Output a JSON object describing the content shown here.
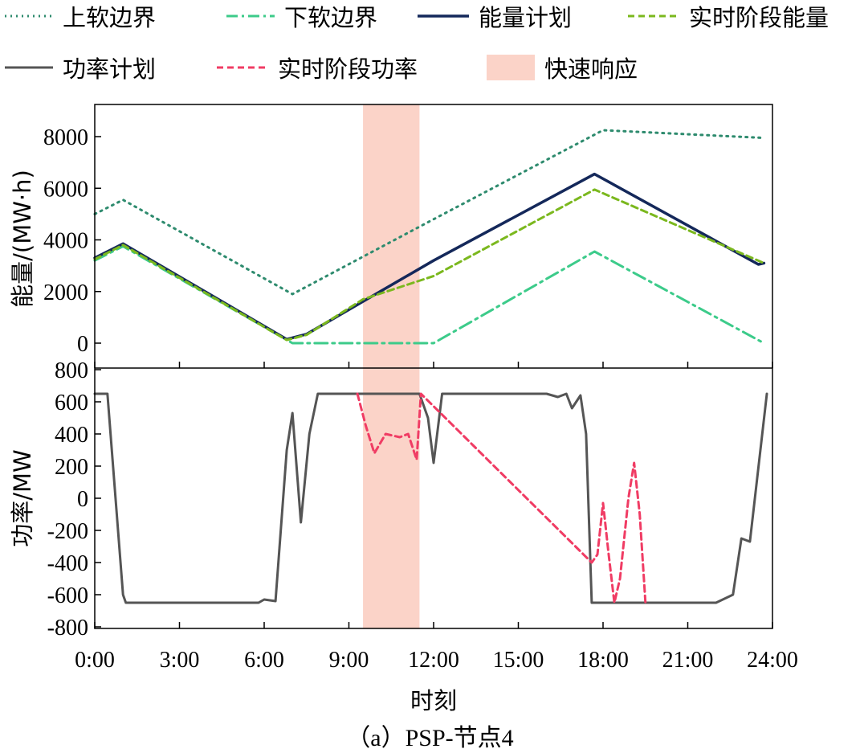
{
  "legend": [
    {
      "label": "上软边界",
      "color": "#2E8B6E",
      "style": "dotted"
    },
    {
      "label": "下软边界",
      "color": "#3CCB8A",
      "style": "dashdot"
    },
    {
      "label": "能量计划",
      "color": "#14285A",
      "style": "solid"
    },
    {
      "label": "实时阶段能量",
      "color": "#7BB81E",
      "style": "dashed"
    },
    {
      "label": "功率计划",
      "color": "#555555",
      "style": "solid"
    },
    {
      "label": "实时阶段功率",
      "color": "#F03C64",
      "style": "dashed"
    },
    {
      "label": "快速响应",
      "color": "#FBD3C8",
      "style": "band"
    }
  ],
  "xlabel": "时刻",
  "caption": "（a）PSP-节点4",
  "chart_data": [
    {
      "type": "line",
      "ylabel": "能量/(MW·h)",
      "xlim": [
        0,
        24
      ],
      "ylim": [
        -500,
        9000
      ],
      "yticks": [
        0,
        2000,
        4000,
        6000,
        8000
      ],
      "highlight_band": {
        "label": "快速响应",
        "x": [
          9.5,
          11.5
        ]
      },
      "series": [
        {
          "name": "上软边界",
          "x": [
            0,
            1,
            7,
            12,
            18,
            23.7
          ],
          "y": [
            5000,
            5550,
            1900,
            4800,
            8250,
            7950
          ]
        },
        {
          "name": "下软边界",
          "x": [
            0,
            1,
            7,
            12,
            17.7,
            23.7
          ],
          "y": [
            3200,
            3750,
            0,
            0,
            3550,
            0
          ]
        },
        {
          "name": "能量计划",
          "x": [
            0,
            1,
            6.8,
            7.5,
            12,
            17.7,
            23.5,
            23.7
          ],
          "y": [
            3300,
            3850,
            150,
            350,
            3200,
            6550,
            3050,
            3100
          ]
        },
        {
          "name": "实时阶段能量",
          "x": [
            0,
            1,
            6.8,
            7.5,
            9.5,
            12,
            17.7,
            23.7
          ],
          "y": [
            3250,
            3800,
            120,
            320,
            1700,
            2600,
            5950,
            3100
          ]
        }
      ]
    },
    {
      "type": "line",
      "ylabel": "功率/MW",
      "xlim": [
        0,
        24
      ],
      "ylim": [
        -800,
        800
      ],
      "yticks": [
        -800,
        -600,
        -400,
        -200,
        0,
        200,
        400,
        600,
        800
      ],
      "highlight_band": {
        "label": "快速响应",
        "x": [
          9.5,
          11.5
        ]
      },
      "series": [
        {
          "name": "功率计划",
          "x": [
            0,
            0.45,
            1.0,
            1.1,
            5.8,
            6.0,
            6.4,
            6.8,
            7.0,
            7.3,
            7.6,
            7.9,
            9.5,
            11.5,
            11.8,
            12.0,
            12.3,
            16.0,
            16.4,
            16.7,
            16.9,
            17.2,
            17.4,
            17.6,
            19.5,
            22.0,
            22.6,
            22.9,
            23.2,
            23.8
          ],
          "y": [
            650,
            650,
            -600,
            -650,
            -650,
            -630,
            -640,
            300,
            530,
            -150,
            400,
            650,
            650,
            650,
            500,
            220,
            650,
            650,
            630,
            650,
            560,
            640,
            400,
            -650,
            -650,
            -650,
            -600,
            -250,
            -270,
            650
          ]
        },
        {
          "name": "实时阶段功率",
          "x": [
            9.3,
            9.6,
            9.9,
            10.3,
            10.8,
            11.1,
            11.4,
            11.55,
            17.6,
            17.8,
            18.0,
            18.2,
            18.4,
            18.6,
            18.9,
            19.1,
            19.3,
            19.5
          ],
          "y": [
            650,
            450,
            280,
            400,
            380,
            400,
            240,
            650,
            -400,
            -350,
            -30,
            -350,
            -650,
            -500,
            0,
            220,
            -100,
            -650
          ]
        }
      ]
    }
  ],
  "xticks": [
    "0:00",
    "3:00",
    "6:00",
    "9:00",
    "12:00",
    "15:00",
    "18:00",
    "21:00",
    "24:00"
  ]
}
